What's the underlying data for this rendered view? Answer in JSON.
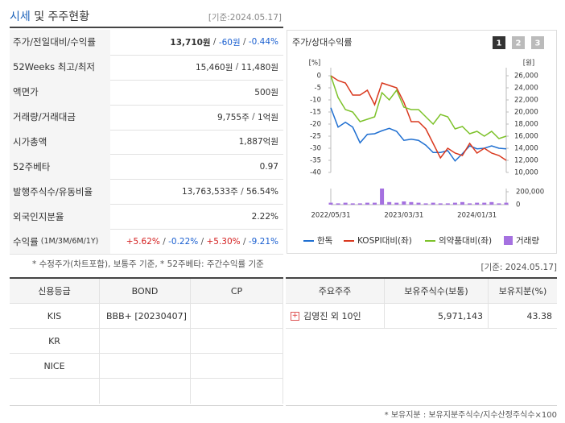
{
  "header": {
    "title_highlight": "시세",
    "title_rest": "및 주주현황",
    "date": "[기준:2024.05.17]"
  },
  "left_table": {
    "separator": " / ",
    "rows": [
      {
        "label": "주가/전일대비/수익률",
        "parts": [
          {
            "text": "13,710원",
            "bold": true
          },
          {
            "text": "-60원",
            "color": "#1a5fd0"
          },
          {
            "text": "-0.44%",
            "color": "#1a5fd0"
          }
        ]
      },
      {
        "label": "52Weeks 최고/최저",
        "parts": [
          {
            "text": "15,460원"
          },
          {
            "text": "11,480원"
          }
        ]
      },
      {
        "label": "액면가",
        "parts": [
          {
            "text": "500원"
          }
        ]
      },
      {
        "label": "거래량/거래대금",
        "parts": [
          {
            "text": "9,755주"
          },
          {
            "text": "1억원"
          }
        ]
      },
      {
        "label": "시가총액",
        "parts": [
          {
            "text": "1,887억원"
          }
        ]
      },
      {
        "label": "52주베타",
        "parts": [
          {
            "text": "0.97"
          }
        ]
      },
      {
        "label": "발행주식수/유동비율",
        "parts": [
          {
            "text": "13,763,533주"
          },
          {
            "text": "56.54%"
          }
        ]
      },
      {
        "label": "외국인지분율",
        "parts": [
          {
            "text": "2.22%"
          }
        ]
      },
      {
        "label": "수익률",
        "sublabel": "(1M/3M/6M/1Y)",
        "parts": [
          {
            "text": "+5.62%",
            "color": "#d42020"
          },
          {
            "text": "-0.22%",
            "color": "#1a5fd0"
          },
          {
            "text": "+5.30%",
            "color": "#d42020"
          },
          {
            "text": "-9.21%",
            "color": "#1a5fd0"
          }
        ]
      }
    ],
    "note": "* 수정주가(차트포함), 보통주 기준, * 52주베타: 주간수익률 기준"
  },
  "chart_data": {
    "type": "line",
    "title": "주가/상대수익률",
    "buttons": [
      "1",
      "2",
      "3"
    ],
    "y_unit": "[%]",
    "y2_unit": "[원]",
    "x": [
      "2022/05/31",
      null,
      null,
      null,
      null,
      null,
      null,
      null,
      null,
      null,
      "2023/03/31",
      null,
      null,
      null,
      null,
      null,
      null,
      null,
      null,
      null,
      "2024/01/31",
      null,
      null,
      null,
      null
    ],
    "ylim": [
      -40,
      0
    ],
    "yticks": [
      0,
      -5,
      -10,
      -15,
      -20,
      -25,
      -30,
      -35,
      -40
    ],
    "y2lim": [
      10000,
      26000
    ],
    "y2ticks": [
      {
        "value": 26000,
        "label": "26,000"
      },
      {
        "value": 24000,
        "label": "24,000"
      },
      {
        "value": 22000,
        "label": "22,000"
      },
      {
        "value": 20000,
        "label": "20,000"
      },
      {
        "value": 18000,
        "label": "18,000"
      },
      {
        "value": 16000,
        "label": "16,000"
      },
      {
        "value": 14000,
        "label": "14,000"
      },
      {
        "value": 12000,
        "label": "12,000"
      },
      {
        "value": 10000,
        "label": "10,000"
      }
    ],
    "volume_lim": [
      0,
      250000
    ],
    "volume_ticks": [
      {
        "value": 200000,
        "label": "200,000"
      },
      0
    ],
    "series": [
      {
        "name": "한독",
        "color": "#1f6fd1",
        "axis": "y2",
        "values": [
          20700,
          17500,
          18300,
          17500,
          14900,
          16300,
          16400,
          16900,
          17300,
          16800,
          15300,
          15500,
          15300,
          14500,
          13300,
          13300,
          13600,
          11900,
          13100,
          14400,
          13900,
          14000,
          14400,
          14000,
          13900
        ]
      },
      {
        "name": "KOSPI대비(좌)",
        "color": "#d9381e",
        "values": [
          0,
          -2,
          -3,
          -8,
          -8,
          -6,
          -12,
          -3,
          -4,
          -5,
          -11,
          -19,
          -19,
          -22,
          -28,
          -34,
          -30,
          -32,
          -33,
          -28,
          -32,
          -30,
          -32,
          -33,
          -35
        ]
      },
      {
        "name": "의약품대비(좌)",
        "color": "#7dc22a",
        "values": [
          0,
          -9,
          -14,
          -15,
          -19,
          -18,
          -17,
          -7,
          -10,
          -6,
          -13,
          -14,
          -14,
          -17,
          -20,
          -16,
          -17,
          -22,
          -21,
          -24,
          -23,
          -25,
          -23,
          -26,
          -25
        ]
      }
    ],
    "volume": {
      "name": "거래량",
      "color": "#a571e0",
      "values": [
        30000,
        20000,
        30000,
        20000,
        20000,
        30000,
        30000,
        250000,
        40000,
        30000,
        50000,
        40000,
        30000,
        20000,
        30000,
        20000,
        20000,
        30000,
        40000,
        20000,
        30000,
        30000,
        40000,
        20000,
        30000
      ]
    }
  },
  "right_date": "[기준: 2024.05.17]",
  "credit_table": {
    "headers": [
      "신용등급",
      "BOND",
      "CP"
    ],
    "rows": [
      {
        "agency": "KIS",
        "bond": "BBB+ [20230407]"
      },
      {
        "agency": "KR"
      },
      {
        "agency": "NICE"
      }
    ]
  },
  "holder_table": {
    "headers": [
      "주요주주",
      "보유주식수(보통)",
      "보유지분(%)"
    ],
    "rows": [
      [
        "김영진 외 10인",
        "5,971,143",
        "43.38"
      ]
    ],
    "note": "* 보유지분 : 보유지분주식수/지수산정주식수×100"
  }
}
